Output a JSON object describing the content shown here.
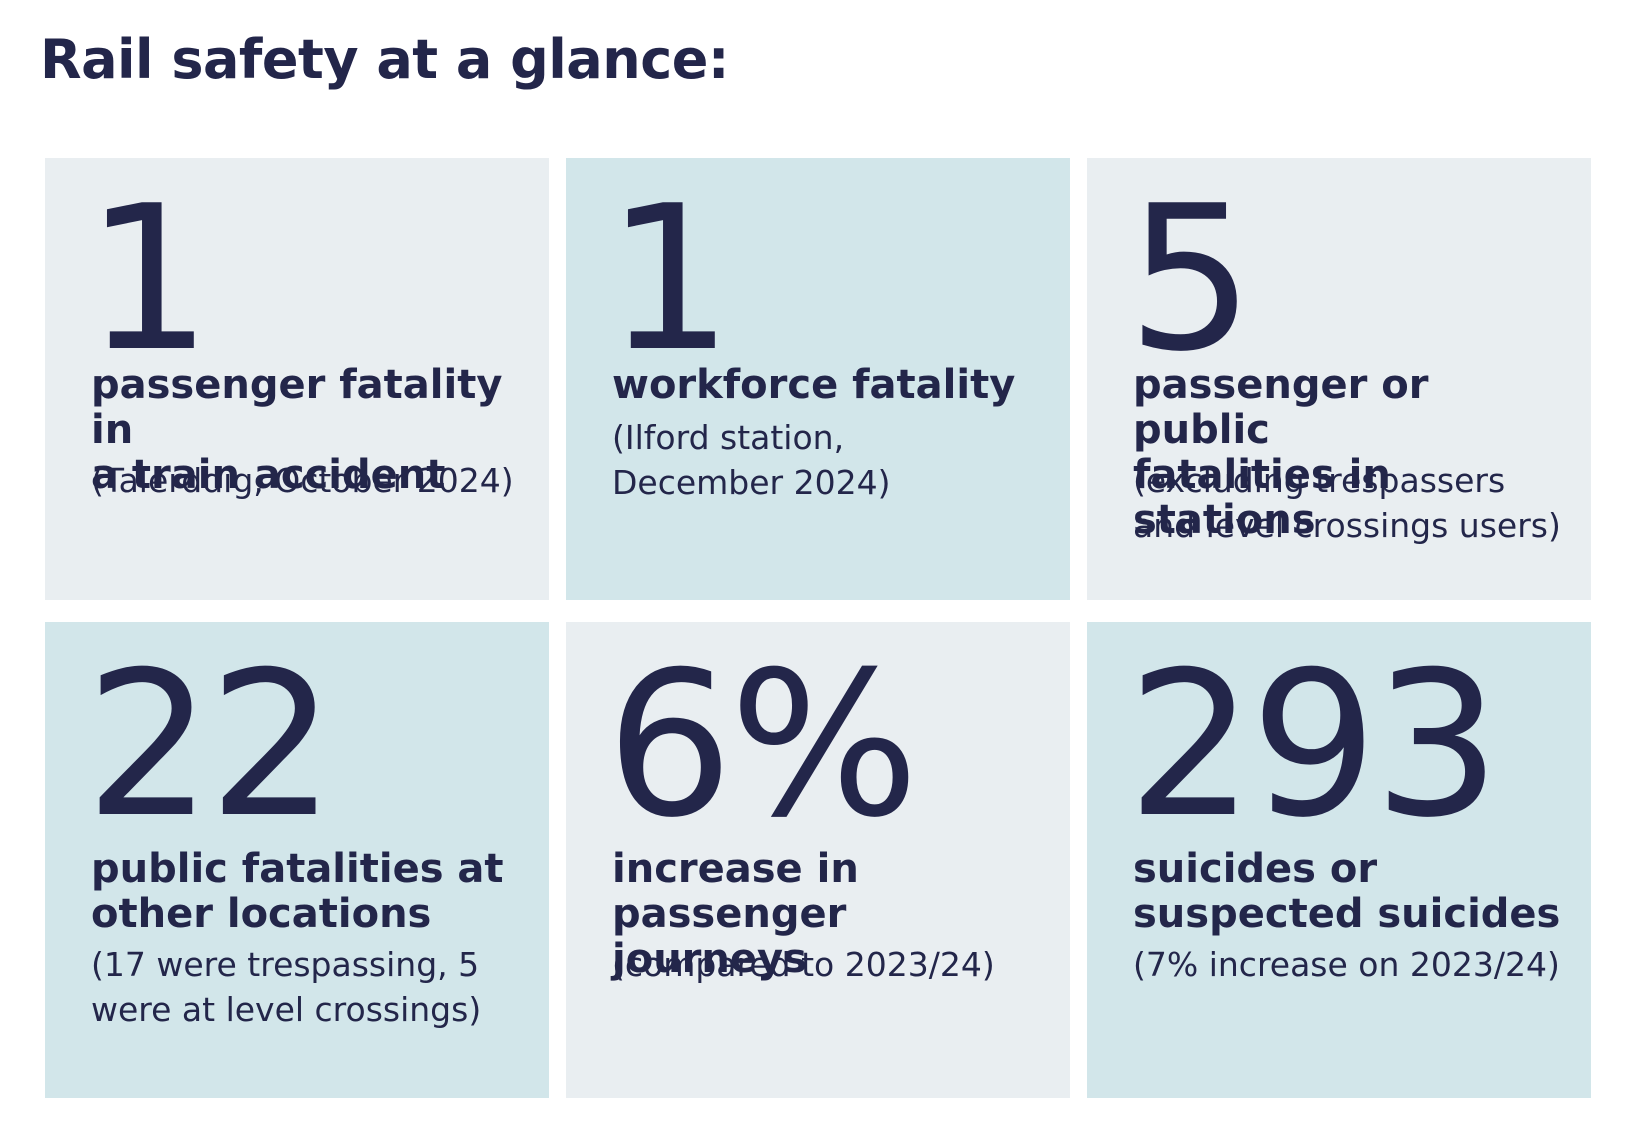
{
  "title": "Rail safety at a glance:",
  "stats": [
    {
      "value": "1",
      "label": "passenger fatality in\na train accident",
      "note": "(Talerddig, October 2024)",
      "color": "#e9eef1"
    },
    {
      "value": "1",
      "label": "workforce fatality",
      "note": "(Ilford station,\nDecember 2024)",
      "color": "#d2e6ea"
    },
    {
      "value": "5",
      "label": "passenger or public\nfatalities in stations",
      "note": "(excluding trespassers\nand level crossings users)",
      "color": "#e9eef1"
    },
    {
      "value": "22",
      "label": "public fatalities at\nother locations",
      "note": "(17 were trespassing, 5\nwere at level crossings)",
      "color": "#d2e6ea"
    },
    {
      "value": "6%",
      "label": "increase in\npassenger journeys",
      "note": "(compared to 2023/24)",
      "color": "#e9eef1"
    },
    {
      "value": "293",
      "label": "suicides or\nsuspected suicides",
      "note": "(7% increase on 2023/24)",
      "color": "#d2e6ea"
    }
  ],
  "colors": {
    "text": "#23264a",
    "card_light": "#e9eef1",
    "card_teal": "#d2e6ea",
    "background": "#ffffff"
  }
}
